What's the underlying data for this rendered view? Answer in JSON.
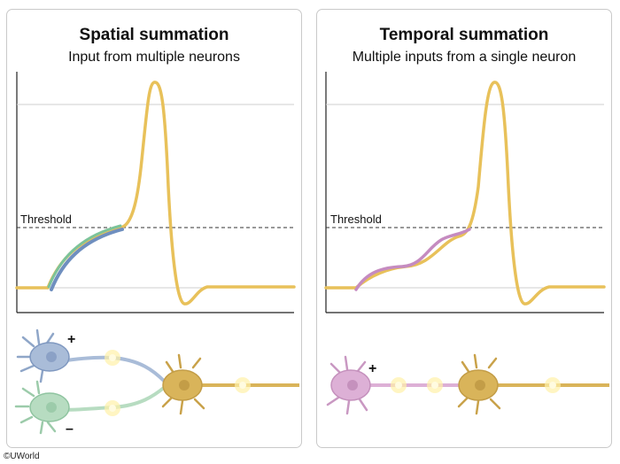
{
  "panels": {
    "left": {
      "title": "Spatial summation",
      "subtitle": "Input from multiple neurons",
      "threshold_label": "Threshold",
      "excitatory_sign": "+",
      "inhibitory_sign": "–"
    },
    "right": {
      "title": "Temporal summation",
      "subtitle": "Multiple inputs from a single neuron",
      "threshold_label": "Threshold",
      "excitatory_sign": "+"
    }
  },
  "copyright": "©UWorld",
  "colors": {
    "action_potential": "#e8c15a",
    "input_blue": "#6f8fbf",
    "input_green": "#7cc39a",
    "input_pink": "#c58bc0",
    "neuron_gold": "#d9b45a",
    "neuron_blue": "#a9bcd8",
    "neuron_green": "#b7dcc1",
    "neuron_pink": "#ddb0d6",
    "glow": "#fff1a8"
  }
}
